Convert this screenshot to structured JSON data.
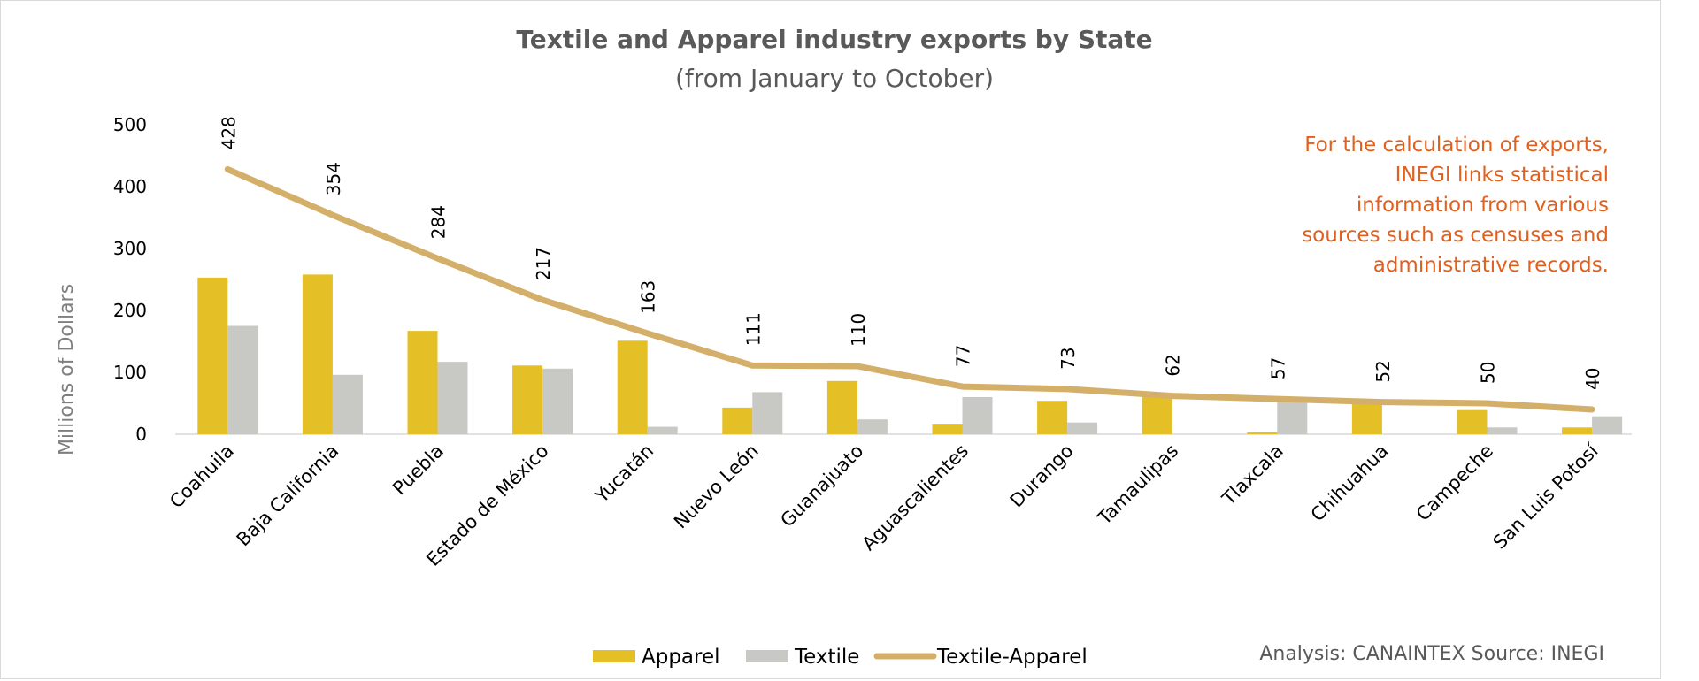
{
  "chart_data": {
    "type": "bar",
    "title": "Textile and Apparel industry exports by State",
    "subtitle": "(from January to October)",
    "ylabel": "Millions of Dollars",
    "xlabel": "",
    "ylim": [
      0,
      500
    ],
    "yticks": [
      0,
      100,
      200,
      300,
      400,
      500
    ],
    "grid": false,
    "legend_position": "bottom",
    "categories": [
      "Coahuila",
      "Baja California",
      "Puebla",
      "Estado de México",
      "Yucatán",
      "Nuevo León",
      "Guanajuato",
      "Aguascalientes",
      "Durango",
      "Tamaulipas",
      "Tlaxcala",
      "Chihuahua",
      "Campeche",
      "San Luis Potosí"
    ],
    "series": [
      {
        "name": "Apparel",
        "type": "bar",
        "color": "#e5bf26",
        "values": [
          253,
          258,
          167,
          111,
          151,
          43,
          86,
          17,
          54,
          62,
          3,
          52,
          39,
          11
        ]
      },
      {
        "name": "Textile",
        "type": "bar",
        "color": "#c8c8c4",
        "values": [
          175,
          96,
          117,
          106,
          12,
          68,
          24,
          60,
          19,
          0,
          54,
          0,
          11,
          29
        ]
      },
      {
        "name": "Textile-Apparel",
        "type": "line",
        "color": "#d4af6a",
        "values": [
          428,
          354,
          284,
          217,
          163,
          111,
          110,
          77,
          73,
          62,
          57,
          52,
          50,
          40
        ]
      }
    ],
    "data_labels": [
      "428",
      "354",
      "284",
      "217",
      "163",
      "111",
      "110",
      "77",
      "73",
      "62",
      "57",
      "52",
      "50",
      "40"
    ],
    "annotation": [
      "For the calculation of exports,",
      "INEGI links statistical",
      "information from various",
      "sources such as censuses and",
      "administrative records."
    ],
    "credit": "Analysis: CANAINTEX  Source: INEGI"
  }
}
